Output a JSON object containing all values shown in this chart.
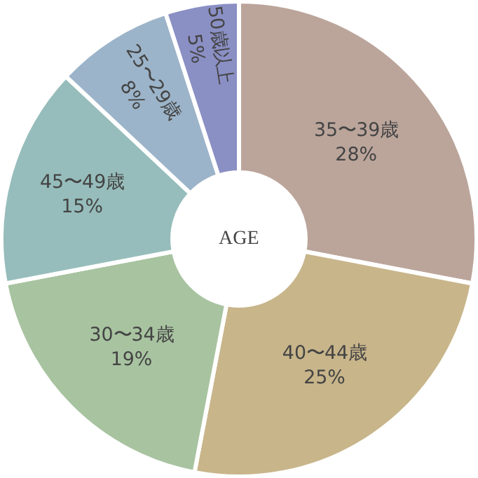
{
  "chart_data": {
    "type": "donut",
    "categories": [
      "35〜39歳",
      "40〜44歳",
      "30〜34歳",
      "45〜49歳",
      "25〜29歳",
      "50歳以上"
    ],
    "values": [
      28,
      25,
      19,
      15,
      8,
      5
    ],
    "colors": [
      "#bba59b",
      "#c8b58a",
      "#a8c3a0",
      "#96bdbb",
      "#9cb4c9",
      "#8a8fc4"
    ],
    "value_labels": [
      "28%",
      "25%",
      "19%",
      "15%",
      "8%",
      "5%"
    ],
    "annotations": [
      "AGE"
    ],
    "legend": false
  }
}
